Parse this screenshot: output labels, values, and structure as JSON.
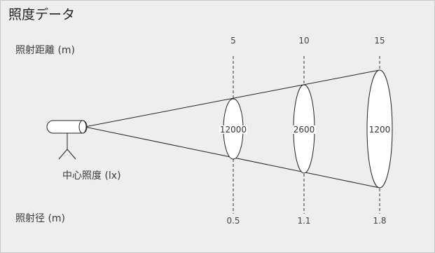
{
  "title": "照度データ",
  "labels": {
    "distance": "照射距離 (m)",
    "center_lux": "中心照度 (lx)",
    "diameter": "照射径 (m)"
  },
  "columns": [
    {
      "distance": "5",
      "lux": "12000",
      "diameter": "0.5"
    },
    {
      "distance": "10",
      "lux": "2600",
      "diameter": "1.1"
    },
    {
      "distance": "15",
      "lux": "1200",
      "diameter": "1.8"
    }
  ],
  "colors": {
    "panel": "#eeeeee",
    "line": "#222222"
  }
}
